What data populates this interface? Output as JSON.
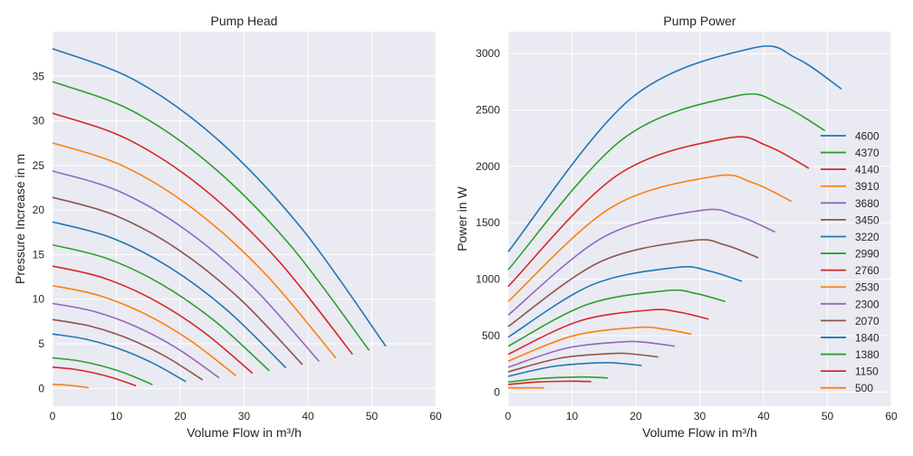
{
  "colors": [
    "#1f77b4",
    "#2ca02c",
    "#d62728",
    "#ff7f0e",
    "#9467bd",
    "#8c564b",
    "#1f77b4",
    "#2ca02c",
    "#d62728",
    "#ff7f0e",
    "#9467bd",
    "#8c564b",
    "#1f77b4",
    "#2ca02c",
    "#d62728",
    "#ff7f0e"
  ],
  "axes_background": "#eaeaf2",
  "grid_color": "#ffffff",
  "chart_data": [
    {
      "type": "line",
      "title": "Pump Head",
      "xlabel": "Volume Flow in m³/h",
      "ylabel": "Pressure Increase in m",
      "xlim": [
        0,
        60
      ],
      "ylim": [
        -2.0,
        40.0
      ],
      "xticks": [
        "0",
        "10",
        "20",
        "30",
        "40",
        "50",
        "60"
      ],
      "yticks": [
        "0",
        "5",
        "10",
        "15",
        "20",
        "25",
        "30",
        "35"
      ],
      "grid": true,
      "series": [
        {
          "x": [
            0,
            13.05,
            26.1,
            39.15,
            52.2
          ],
          "y": [
            38.1,
            34.5,
            27.75,
            17.82,
            4.72
          ]
        },
        {
          "x": [
            0,
            12.4,
            24.8,
            37.19,
            49.59
          ],
          "y": [
            34.39,
            31.15,
            25.04,
            16.08,
            4.26
          ]
        },
        {
          "x": [
            0,
            11.75,
            23.49,
            35.24,
            46.98
          ],
          "y": [
            30.86,
            27.95,
            22.48,
            14.43,
            3.82
          ]
        },
        {
          "x": [
            0,
            11.09,
            22.19,
            33.28,
            44.37
          ],
          "y": [
            27.53,
            24.93,
            20.05,
            12.87,
            3.41
          ]
        },
        {
          "x": [
            0,
            10.44,
            20.88,
            31.32,
            41.76
          ],
          "y": [
            24.38,
            22.09,
            17.76,
            11.4,
            3.02
          ]
        },
        {
          "x": [
            0,
            9.79,
            19.58,
            29.36,
            39.15
          ],
          "y": [
            21.43,
            19.41,
            15.61,
            10.02,
            2.66
          ]
        },
        {
          "x": [
            0,
            9.14,
            18.27,
            27.41,
            36.54
          ],
          "y": [
            18.67,
            16.91,
            13.6,
            8.73,
            2.31
          ]
        },
        {
          "x": [
            0,
            8.48,
            16.97,
            25.45,
            33.93
          ],
          "y": [
            16.1,
            14.58,
            11.72,
            7.53,
            1.99
          ]
        },
        {
          "x": [
            0,
            7.83,
            15.66,
            23.49,
            31.32
          ],
          "y": [
            13.72,
            12.42,
            9.99,
            6.42,
            1.7
          ]
        },
        {
          "x": [
            0,
            7.18,
            14.36,
            21.53,
            28.71
          ],
          "y": [
            11.53,
            10.44,
            8.39,
            5.39,
            1.43
          ]
        },
        {
          "x": [
            0,
            6.53,
            13.05,
            19.58,
            26.1
          ],
          "y": [
            9.53,
            8.63,
            6.94,
            4.46,
            1.18
          ]
        },
        {
          "x": [
            0,
            5.87,
            11.75,
            17.62,
            23.49
          ],
          "y": [
            7.72,
            6.99,
            5.62,
            3.61,
            0.96
          ]
        },
        {
          "x": [
            0,
            5.22,
            10.44,
            15.66,
            20.88
          ],
          "y": [
            6.1,
            5.52,
            4.44,
            2.85,
            0.76
          ]
        },
        {
          "x": [
            0,
            3.92,
            7.83,
            11.75,
            15.66
          ],
          "y": [
            3.43,
            3.11,
            2.5,
            1.6,
            0.42
          ]
        },
        {
          "x": [
            0,
            3.26,
            6.53,
            9.79,
            13.05
          ],
          "y": [
            2.38,
            2.16,
            1.73,
            1.11,
            0.3
          ]
        },
        {
          "x": [
            0,
            1.42,
            2.84,
            4.25,
            5.67
          ],
          "y": [
            0.45,
            0.41,
            0.33,
            0.21,
            0.06
          ]
        }
      ]
    },
    {
      "type": "line",
      "title": "Pump Power",
      "xlabel": "Volume Flow in m³/h",
      "ylabel": "Power in W",
      "xlim": [
        0,
        60
      ],
      "ylim": [
        -126,
        3194
      ],
      "xticks": [
        "0",
        "10",
        "20",
        "30",
        "40",
        "50",
        "60"
      ],
      "yticks": [
        "0",
        "500",
        "1000",
        "1500",
        "2000",
        "2500",
        "3000"
      ],
      "grid": true,
      "legend_position": "right",
      "series": [
        {
          "name": "4600",
          "x": [
            0,
            19.1,
            38.2,
            45.2,
            52.2
          ],
          "y": [
            1243,
            2596,
            3047,
            2957,
            2686
          ]
        },
        {
          "name": "4370",
          "x": [
            0,
            17.9,
            35.8,
            42.7,
            49.6
          ],
          "y": [
            1083,
            2240,
            2625,
            2548,
            2317
          ]
        },
        {
          "name": "4140",
          "x": [
            0,
            17.05,
            34.1,
            40.6,
            47.1
          ],
          "y": [
            935,
            1920,
            2248,
            2182,
            1983
          ]
        },
        {
          "name": "3910",
          "x": [
            0,
            16.1,
            32.2,
            38.3,
            44.4
          ],
          "y": [
            802,
            1634,
            1911,
            1856,
            1689
          ]
        },
        {
          "name": "3680",
          "x": [
            0,
            15.05,
            30.1,
            35.95,
            41.8
          ],
          "y": [
            682,
            1377,
            1609,
            1562,
            1419
          ]
        },
        {
          "name": "3450",
          "x": [
            0,
            14.35,
            28.7,
            33.95,
            39.2
          ],
          "y": [
            580,
            1152,
            1342,
            1304,
            1189
          ]
        },
        {
          "name": "3220",
          "x": [
            0,
            13.15,
            26.3,
            31.45,
            36.6
          ],
          "y": [
            486,
            950,
            1104,
            1073,
            981
          ]
        },
        {
          "name": "2990",
          "x": [
            0,
            12.35,
            24.7,
            29.35,
            34.0
          ],
          "y": [
            406,
            775,
            898,
            874,
            802
          ]
        },
        {
          "name": "2760",
          "x": [
            0,
            11.15,
            22.3,
            26.85,
            31.4
          ],
          "y": [
            334,
            629,
            727,
            707,
            646
          ]
        },
        {
          "name": "2530",
          "x": [
            0,
            10.1,
            20.2,
            24.45,
            28.7
          ],
          "y": [
            273,
            497,
            572,
            557,
            513
          ]
        },
        {
          "name": "2300",
          "x": [
            0,
            9.15,
            18.3,
            22.2,
            26.1
          ],
          "y": [
            219,
            389,
            446,
            436,
            406
          ]
        },
        {
          "name": "2070",
          "x": [
            0,
            8.2,
            16.4,
            19.95,
            23.5
          ],
          "y": [
            179,
            301,
            342,
            334,
            310
          ]
        },
        {
          "name": "1840",
          "x": [
            0,
            7.25,
            14.5,
            17.7,
            20.9
          ],
          "y": [
            139,
            229,
            259,
            253,
            235
          ]
        },
        {
          "name": "1380",
          "x": [
            0,
            5.6,
            11.2,
            13.4,
            15.6
          ],
          "y": [
            88,
            122,
            133,
            131,
            125
          ]
        },
        {
          "name": "1150",
          "x": [
            0,
            4.65,
            9.3,
            11.15,
            13.0
          ],
          "y": [
            67,
            89,
            96,
            95,
            93
          ]
        },
        {
          "name": "500",
          "x": [
            0,
            1.42,
            2.84,
            4.25,
            5.67
          ],
          "y": [
            37,
            37,
            37,
            37,
            37
          ]
        }
      ]
    }
  ]
}
